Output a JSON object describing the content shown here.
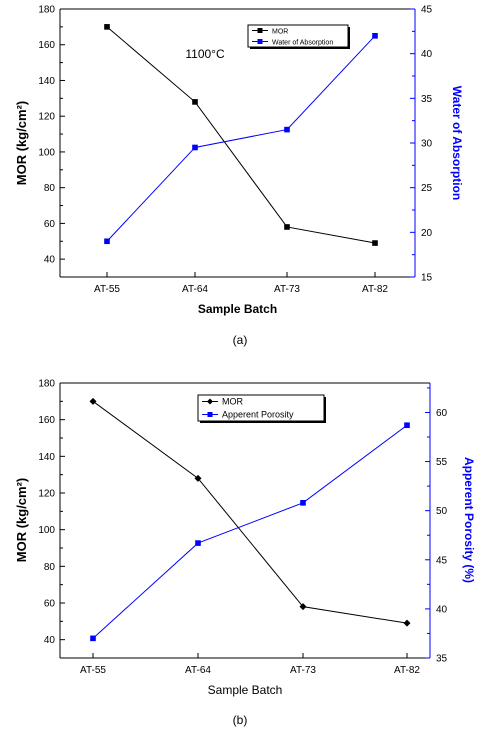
{
  "chart_data": [
    {
      "type": "line",
      "caption": "(a)",
      "annotation": "1100°C",
      "xlabel": "Sample Batch",
      "ylabel_left": "MOR (kg/cm²)",
      "ylabel_right": "Water of Absorption",
      "categories": [
        "AT-55",
        "AT-64",
        "AT-73",
        "AT-82"
      ],
      "ylim_left": [
        30,
        180
      ],
      "yticks_left": [
        40,
        60,
        80,
        100,
        120,
        140,
        160,
        180
      ],
      "ylim_right": [
        15,
        45
      ],
      "yticks_right": [
        15,
        20,
        25,
        30,
        35,
        40,
        45
      ],
      "legend_position": "top-right",
      "series": [
        {
          "name": "MOR",
          "axis": "left",
          "marker": "square",
          "color": "#000000",
          "values": [
            170,
            128,
            58,
            49
          ]
        },
        {
          "name": "Water of Absorption",
          "axis": "right",
          "marker": "square",
          "color": "#0000ff",
          "values": [
            19,
            29.5,
            31.5,
            42
          ]
        }
      ]
    },
    {
      "type": "line",
      "caption": "(b)",
      "xlabel": "Sample Batch",
      "ylabel_left": "MOR (kg/cm²)",
      "ylabel_right": "Apperent Porosity (%)",
      "categories": [
        "AT-55",
        "AT-64",
        "AT-73",
        "AT-82"
      ],
      "ylim_left": [
        30,
        180
      ],
      "yticks_left": [
        40,
        60,
        80,
        100,
        120,
        140,
        160,
        180
      ],
      "ylim_right": [
        35,
        63
      ],
      "yticks_right": [
        35,
        40,
        45,
        50,
        55,
        60
      ],
      "legend_position": "top-right",
      "series": [
        {
          "name": "MOR",
          "axis": "left",
          "marker": "diamond",
          "color": "#000000",
          "values": [
            170,
            128,
            58,
            49
          ]
        },
        {
          "name": "Apperent Porosity",
          "axis": "right",
          "marker": "square",
          "color": "#0000ff",
          "values": [
            37,
            46.7,
            50.8,
            58.7
          ]
        }
      ]
    }
  ]
}
